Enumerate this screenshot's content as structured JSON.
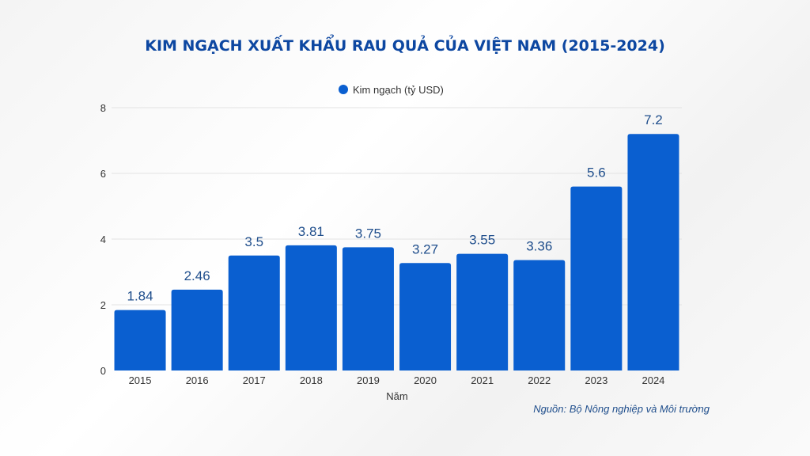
{
  "chart_data": {
    "type": "bar",
    "title": "KIM NGẠCH XUẤT KHẨU RAU QUẢ CỦA VIỆT NAM (2015-2024)",
    "categories": [
      "2015",
      "2016",
      "2017",
      "2018",
      "2019",
      "2020",
      "2021",
      "2022",
      "2023",
      "2024"
    ],
    "series": [
      {
        "name": "Kim ngạch (tỷ USD)",
        "values": [
          1.84,
          2.46,
          3.5,
          3.81,
          3.75,
          3.27,
          3.55,
          3.36,
          5.6,
          7.2
        ],
        "labels": [
          "1.84",
          "2.46",
          "3.5",
          "3.81",
          "3.75",
          "3.27",
          "3.55",
          "3.36",
          "5.6",
          "7.2"
        ]
      }
    ],
    "xlabel": "Năm",
    "ylabel": "",
    "ylim": [
      0,
      8
    ],
    "yticks": [
      "0",
      "2",
      "4",
      "6",
      "8"
    ],
    "grid": true,
    "legend_position": "top-center",
    "source": "Nguồn: Bộ Nông nghiệp và Môi trường",
    "colors": {
      "bar": "#0a5fd0",
      "title": "#0d47a1",
      "data_label": "#1f4e8c"
    }
  }
}
